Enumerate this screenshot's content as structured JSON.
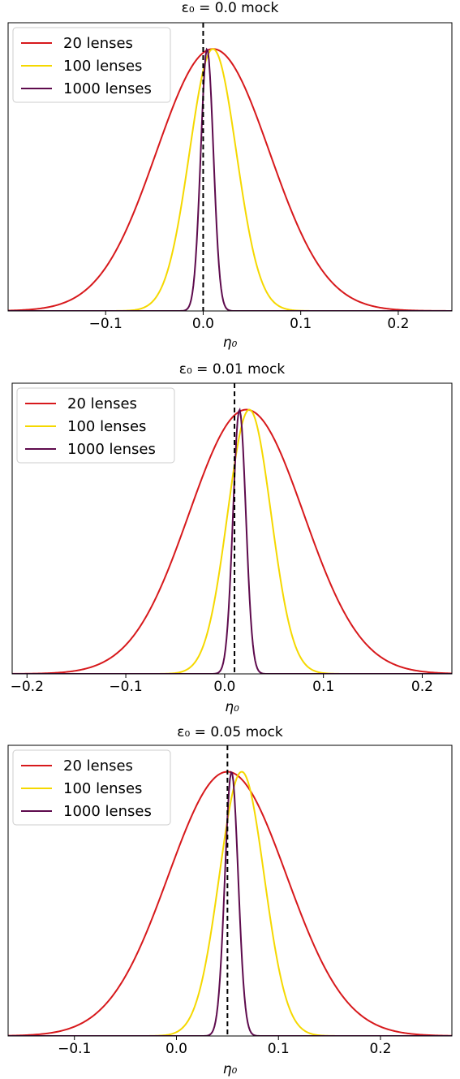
{
  "colors": {
    "n20": "#d7191c",
    "n100": "#f5d800",
    "n1000": "#5e0b4d",
    "truth": "#000000"
  },
  "chart_data": [
    {
      "type": "line",
      "title": "ε₀ = 0.0 mock",
      "xlabel": "η₀",
      "ylabel": "",
      "xlim": [
        -0.2,
        0.255
      ],
      "ylim": [
        0,
        1.1
      ],
      "truth_line": 0.0,
      "xticks": [
        -0.1,
        0.0,
        0.1,
        0.2
      ],
      "xtick_labels": [
        "−0.1",
        "0.0",
        "0.1",
        "0.2"
      ],
      "y_ticks_shown": false,
      "legend_position": "upper left",
      "series": [
        {
          "name": "20 lenses",
          "color_key": "n20",
          "mean": 0.01,
          "sigma": 0.058,
          "peak": 1.0
        },
        {
          "name": "100 lenses",
          "color_key": "n100",
          "mean": 0.01,
          "sigma": 0.024,
          "peak": 1.0
        },
        {
          "name": "1000 lenses",
          "color_key": "n1000",
          "mean": 0.004,
          "sigma": 0.0065,
          "peak": 1.0
        }
      ]
    },
    {
      "type": "line",
      "title": "ε₀ = 0.01 mock",
      "xlabel": "η₀",
      "ylabel": "",
      "xlim": [
        -0.215,
        0.23
      ],
      "ylim": [
        0,
        1.1
      ],
      "truth_line": 0.01,
      "xticks": [
        -0.2,
        -0.1,
        0.0,
        0.1,
        0.2
      ],
      "xtick_labels": [
        "−0.2",
        "−0.1",
        "0.0",
        "0.1",
        "0.2"
      ],
      "y_ticks_shown": false,
      "legend_position": "upper left",
      "series": [
        {
          "name": "20 lenses",
          "color_key": "n20",
          "mean": 0.022,
          "sigma": 0.058,
          "peak": 1.0
        },
        {
          "name": "100 lenses",
          "color_key": "n100",
          "mean": 0.025,
          "sigma": 0.022,
          "peak": 1.0
        },
        {
          "name": "1000 lenses",
          "color_key": "n1000",
          "mean": 0.015,
          "sigma": 0.0065,
          "peak": 1.0
        }
      ]
    },
    {
      "type": "line",
      "title": "ε₀ = 0.05 mock",
      "xlabel": "η₀",
      "ylabel": "",
      "xlim": [
        -0.165,
        0.27
      ],
      "ylim": [
        0,
        1.1
      ],
      "truth_line": 0.05,
      "xticks": [
        -0.1,
        0.0,
        0.1,
        0.2
      ],
      "xtick_labels": [
        "−0.1",
        "0.0",
        "0.1",
        "0.2"
      ],
      "y_ticks_shown": false,
      "legend_position": "upper left",
      "series": [
        {
          "name": "20 lenses",
          "color_key": "n20",
          "mean": 0.05,
          "sigma": 0.058,
          "peak": 1.0
        },
        {
          "name": "100 lenses",
          "color_key": "n100",
          "mean": 0.064,
          "sigma": 0.022,
          "peak": 1.0
        },
        {
          "name": "1000 lenses",
          "color_key": "n1000",
          "mean": 0.054,
          "sigma": 0.0065,
          "peak": 1.0
        }
      ]
    }
  ]
}
